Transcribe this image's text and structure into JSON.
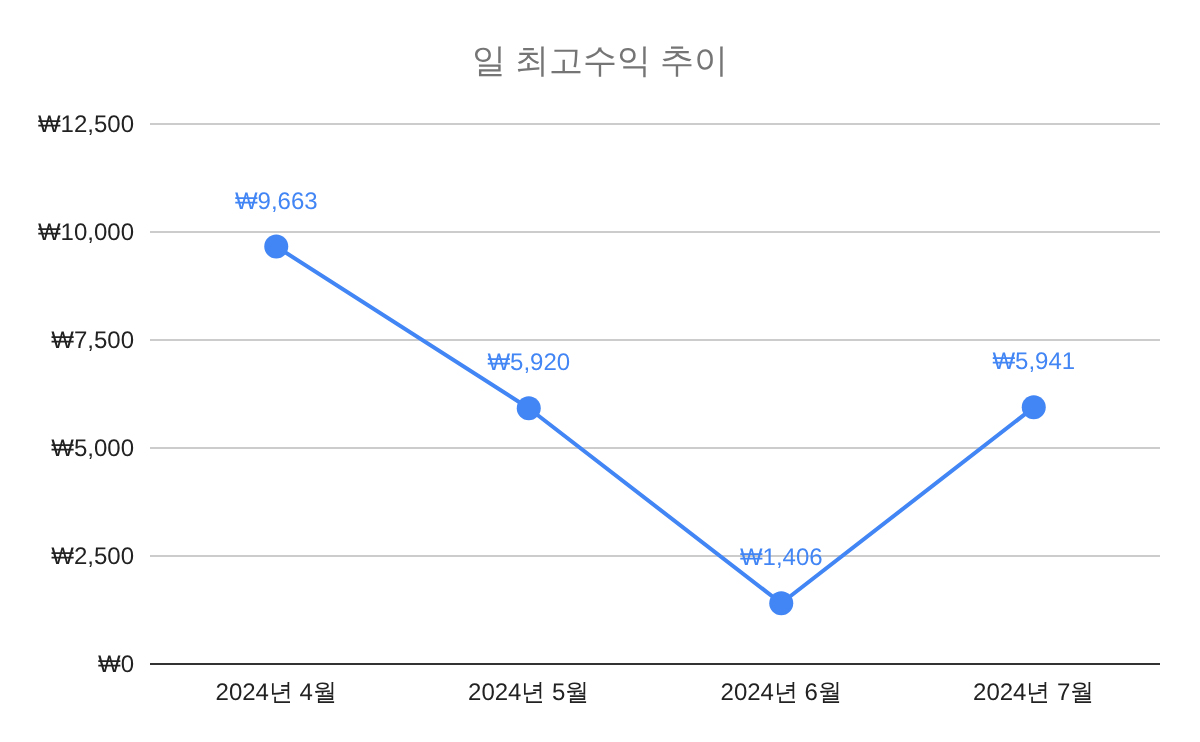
{
  "chart_data": {
    "type": "line",
    "title": "일 최고수익 추이",
    "categories": [
      "2024년 4월",
      "2024년 5월",
      "2024년 6월",
      "2024년 7월"
    ],
    "series": [
      {
        "color": "#4285f4",
        "values": [
          9663,
          5920,
          1406,
          5941
        ],
        "value_labels": [
          "₩9,663",
          "₩5,920",
          "₩1,406",
          "₩5,941"
        ]
      }
    ],
    "ylim": [
      0,
      12500
    ],
    "yticks": [
      {
        "value": 0,
        "label": "₩0"
      },
      {
        "value": 2500,
        "label": "₩2,500"
      },
      {
        "value": 5000,
        "label": "₩5,000"
      },
      {
        "value": 7500,
        "label": "₩7,500"
      },
      {
        "value": 10000,
        "label": "₩10,000"
      },
      {
        "value": 12500,
        "label": "₩12,500"
      }
    ],
    "grid": "y",
    "marker": "circle",
    "line_style": "solid"
  }
}
